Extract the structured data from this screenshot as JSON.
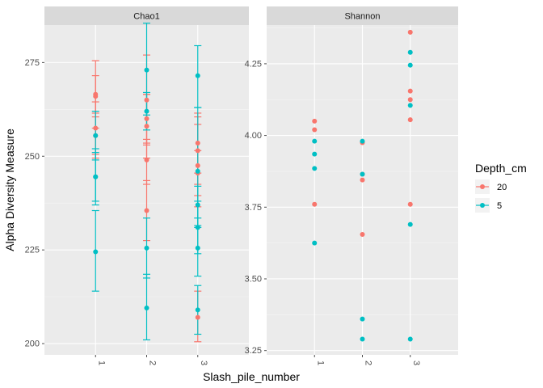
{
  "chart_data": {
    "type": "scatter",
    "xlabel": "Slash_pile_number",
    "ylabel": "Alpha Diversity Measure",
    "legend": {
      "title": "Depth_cm",
      "position": "right",
      "entries": [
        {
          "label": "20",
          "color": "#F8766D"
        },
        {
          "label": "5",
          "color": "#00BFC4"
        }
      ]
    },
    "grid": true,
    "panels": [
      {
        "strip": "Chao1",
        "x_categories": [
          "1",
          "2",
          "3"
        ],
        "ylim": [
          197,
          285
        ],
        "y_ticks": [
          200,
          225,
          250,
          275
        ],
        "series": [
          {
            "name": "20",
            "points": [
              {
                "x": "1",
                "y": 266.5,
                "lo": 257.5,
                "hi": 275.5
              },
              {
                "x": "1",
                "y": 266.0,
                "lo": 261.5,
                "hi": 271.5
              },
              {
                "x": "1",
                "y": 257.5,
                "lo": 250.5,
                "hi": 264.5
              },
              {
                "x": "1",
                "y": 255.5,
                "lo": 249.5,
                "hi": 260.5
              },
              {
                "x": "2",
                "y": 265.0,
                "lo": 253.0,
                "hi": 277.0
              },
              {
                "x": "2",
                "y": 260.0,
                "lo": 253.5,
                "hi": 266.5
              },
              {
                "x": "2",
                "y": 258.0,
                "lo": 249.5,
                "hi": 266.5
              },
              {
                "x": "2",
                "y": 249.0,
                "lo": 242.5,
                "hi": 254.5
              },
              {
                "x": "2",
                "y": 235.5,
                "lo": 227.5,
                "hi": 243.5
              },
              {
                "x": "3",
                "y": 253.5,
                "lo": 245.5,
                "hi": 261.5
              },
              {
                "x": "3",
                "y": 251.5,
                "lo": 242.5,
                "hi": 260.5
              },
              {
                "x": "3",
                "y": 247.5,
                "lo": 236.5,
                "hi": 258.5
              },
              {
                "x": "3",
                "y": 245.5,
                "lo": 239.5,
                "hi": 251.5
              },
              {
                "x": "3",
                "y": 207.0,
                "lo": 200.5,
                "hi": 214.0
              }
            ]
          },
          {
            "name": "5",
            "points": [
              {
                "x": "1",
                "y": 255.5,
                "lo": 249.0,
                "hi": 262.0
              },
              {
                "x": "1",
                "y": 244.5,
                "lo": 238.0,
                "hi": 251.0
              },
              {
                "x": "1",
                "y": 244.5,
                "lo": 237.0,
                "hi": 252.0
              },
              {
                "x": "1",
                "y": 224.5,
                "lo": 214.0,
                "hi": 235.5
              },
              {
                "x": "2",
                "y": 273.0,
                "lo": 261.0,
                "hi": 285.5
              },
              {
                "x": "2",
                "y": 262.0,
                "lo": 257.0,
                "hi": 267.0
              },
              {
                "x": "2",
                "y": 225.5,
                "lo": 217.5,
                "hi": 233.5
              },
              {
                "x": "2",
                "y": 209.5,
                "lo": 201.0,
                "hi": 218.5
              },
              {
                "x": "3",
                "y": 271.5,
                "lo": 263.0,
                "hi": 279.5
              },
              {
                "x": "3",
                "y": 246.0,
                "lo": 231.0,
                "hi": 263.0
              },
              {
                "x": "3",
                "y": 237.0,
                "lo": 231.5,
                "hi": 242.0
              },
              {
                "x": "3",
                "y": 231.0,
                "lo": 224.0,
                "hi": 238.0
              },
              {
                "x": "3",
                "y": 225.5,
                "lo": 218.0,
                "hi": 233.5
              },
              {
                "x": "3",
                "y": 209.0,
                "lo": 202.5,
                "hi": 215.5
              }
            ]
          }
        ]
      },
      {
        "strip": "Shannon",
        "x_categories": [
          "1",
          "2",
          "3"
        ],
        "ylim": [
          3.235,
          4.385
        ],
        "y_ticks": [
          3.25,
          3.5,
          3.75,
          4.0,
          4.25
        ],
        "y_tick_labels": [
          "3.25",
          "3.50",
          "3.75",
          "4.00",
          "4.25"
        ],
        "series": [
          {
            "name": "20",
            "points": [
              {
                "x": "1",
                "y": 4.05
              },
              {
                "x": "1",
                "y": 4.02
              },
              {
                "x": "1",
                "y": 3.76
              },
              {
                "x": "2",
                "y": 3.975
              },
              {
                "x": "2",
                "y": 3.865
              },
              {
                "x": "2",
                "y": 3.845
              },
              {
                "x": "2",
                "y": 3.655
              },
              {
                "x": "3",
                "y": 4.36
              },
              {
                "x": "3",
                "y": 4.155
              },
              {
                "x": "3",
                "y": 4.125
              },
              {
                "x": "3",
                "y": 4.055
              },
              {
                "x": "3",
                "y": 3.76
              }
            ]
          },
          {
            "name": "5",
            "points": [
              {
                "x": "1",
                "y": 3.98
              },
              {
                "x": "1",
                "y": 3.935
              },
              {
                "x": "1",
                "y": 3.885
              },
              {
                "x": "1",
                "y": 3.625
              },
              {
                "x": "2",
                "y": 3.98
              },
              {
                "x": "2",
                "y": 3.865
              },
              {
                "x": "2",
                "y": 3.36
              },
              {
                "x": "2",
                "y": 3.29
              },
              {
                "x": "3",
                "y": 4.29
              },
              {
                "x": "3",
                "y": 4.245
              },
              {
                "x": "3",
                "y": 4.105
              },
              {
                "x": "3",
                "y": 3.69
              },
              {
                "x": "3",
                "y": 3.29
              }
            ]
          }
        ]
      }
    ]
  }
}
